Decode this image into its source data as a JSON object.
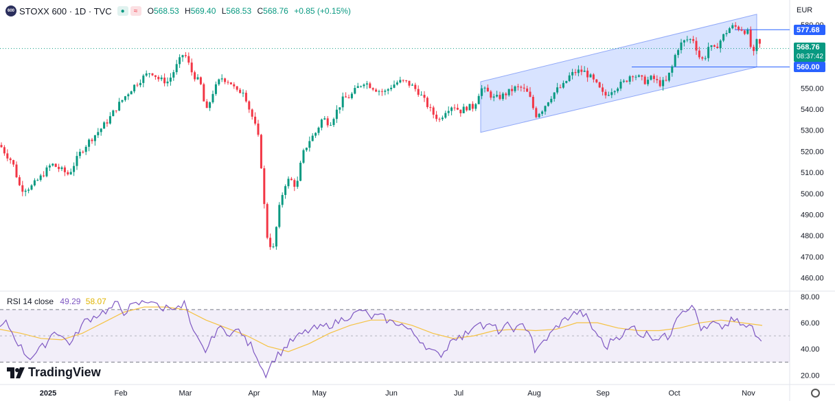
{
  "header": {
    "logo_text": "600",
    "symbol": "STOXX 600 · 1D · TVC",
    "ohlc": [
      {
        "k": "O",
        "v": "568.53"
      },
      {
        "k": "H",
        "v": "569.40"
      },
      {
        "k": "L",
        "v": "568.53"
      },
      {
        "k": "C",
        "v": "568.76"
      }
    ],
    "change": "+0.85 (+0.15%)",
    "pill_green_icon": "indicator-visibility-icon",
    "pill_red_icon": "compare-icon"
  },
  "currency": "EUR",
  "brand": "TradingView",
  "price_tags": {
    "upper_level": "577.68",
    "current_price": "568.76",
    "countdown": "08:37:42",
    "lower_level": "560.00"
  },
  "rsi": {
    "label": "RSI 14 close",
    "rsi_value": "49.29",
    "ma_value": "58.07"
  },
  "colors": {
    "up": "#089981",
    "down": "#f23645",
    "channel_fill": "#2962ff",
    "level_line": "#2962ff",
    "rsi_line": "#7e57c2",
    "rsi_ma": "#f5c242",
    "rsi_band": "#7e57c2"
  },
  "chart_data": {
    "type": "candlestick",
    "price_axis": {
      "ticks": [
        "580.00",
        "570.00",
        "560.00",
        "550.00",
        "540.00",
        "530.00",
        "520.00",
        "510.00",
        "500.00",
        "490.00",
        "480.00",
        "470.00",
        "460.00"
      ],
      "ylim": [
        455,
        582
      ]
    },
    "time_axis": [
      "2025",
      "Feb",
      "Mar",
      "Apr",
      "May",
      "Jun",
      "Jul",
      "Aug",
      "Sep",
      "Oct",
      "Nov"
    ],
    "close_path": [
      [
        0,
        523
      ],
      [
        8,
        519
      ],
      [
        18,
        515
      ],
      [
        30,
        502
      ],
      [
        45,
        503
      ],
      [
        60,
        508
      ],
      [
        75,
        514
      ],
      [
        90,
        511
      ],
      [
        100,
        509
      ],
      [
        108,
        514
      ],
      [
        118,
        520
      ],
      [
        130,
        525
      ],
      [
        145,
        530
      ],
      [
        158,
        535
      ],
      [
        170,
        541
      ],
      [
        182,
        546
      ],
      [
        195,
        551
      ],
      [
        208,
        555
      ],
      [
        220,
        558
      ],
      [
        232,
        554
      ],
      [
        245,
        553
      ],
      [
        258,
        561
      ],
      [
        268,
        567
      ],
      [
        280,
        557
      ],
      [
        292,
        552
      ],
      [
        300,
        538
      ],
      [
        310,
        548
      ],
      [
        322,
        555
      ],
      [
        335,
        553
      ],
      [
        345,
        548
      ],
      [
        355,
        549
      ],
      [
        362,
        541
      ],
      [
        370,
        534
      ],
      [
        378,
        524
      ],
      [
        384,
        497
      ],
      [
        390,
        477
      ],
      [
        398,
        474
      ],
      [
        406,
        492
      ],
      [
        414,
        504
      ],
      [
        422,
        507
      ],
      [
        432,
        503
      ],
      [
        440,
        518
      ],
      [
        450,
        525
      ],
      [
        460,
        529
      ],
      [
        470,
        536
      ],
      [
        480,
        533
      ],
      [
        490,
        539
      ],
      [
        500,
        545
      ],
      [
        510,
        546
      ],
      [
        520,
        550
      ],
      [
        530,
        553
      ],
      [
        540,
        551
      ],
      [
        550,
        549
      ],
      [
        560,
        548
      ],
      [
        570,
        551
      ],
      [
        580,
        553
      ],
      [
        590,
        553
      ],
      [
        600,
        551
      ],
      [
        610,
        548
      ],
      [
        620,
        543
      ],
      [
        630,
        538
      ],
      [
        640,
        535
      ],
      [
        650,
        540
      ],
      [
        660,
        542
      ],
      [
        670,
        539
      ],
      [
        680,
        541
      ],
      [
        690,
        541
      ],
      [
        700,
        550
      ],
      [
        710,
        548
      ],
      [
        720,
        545
      ],
      [
        730,
        546
      ],
      [
        740,
        548
      ],
      [
        750,
        550
      ],
      [
        760,
        550
      ],
      [
        770,
        547
      ],
      [
        780,
        537
      ],
      [
        790,
        540
      ],
      [
        800,
        545
      ],
      [
        810,
        549
      ],
      [
        820,
        551
      ],
      [
        830,
        556
      ],
      [
        840,
        558
      ],
      [
        850,
        558
      ],
      [
        860,
        555
      ],
      [
        870,
        551
      ],
      [
        880,
        546
      ],
      [
        890,
        549
      ],
      [
        900,
        551
      ],
      [
        910,
        553
      ],
      [
        920,
        557
      ],
      [
        930,
        555
      ],
      [
        940,
        553
      ],
      [
        950,
        555
      ],
      [
        960,
        552
      ],
      [
        970,
        553
      ],
      [
        980,
        561
      ],
      [
        985,
        568
      ],
      [
        992,
        571
      ],
      [
        1000,
        573
      ],
      [
        1010,
        573
      ],
      [
        1018,
        565
      ],
      [
        1025,
        563
      ],
      [
        1032,
        570
      ],
      [
        1040,
        568
      ],
      [
        1048,
        572
      ],
      [
        1056,
        576
      ],
      [
        1064,
        579
      ],
      [
        1072,
        579
      ],
      [
        1080,
        578
      ],
      [
        1090,
        576
      ],
      [
        1096,
        564
      ],
      [
        1102,
        572
      ],
      [
        1108,
        570
      ]
    ],
    "channel": {
      "lower_start": [
        700,
        529
      ],
      "lower_end": [
        1102,
        560
      ],
      "upper_start": [
        700,
        553
      ],
      "upper_end": [
        1102,
        585
      ]
    },
    "levels": [
      577.68,
      560.0,
      568.76
    ],
    "rsi_axis": {
      "ticks": [
        "80.00",
        "60.00",
        "40.00",
        "20.00"
      ],
      "ylim": [
        15,
        82
      ],
      "bands": [
        30,
        70
      ]
    },
    "rsi_path": [
      [
        0,
        56
      ],
      [
        10,
        60
      ],
      [
        20,
        50
      ],
      [
        32,
        40
      ],
      [
        42,
        33
      ],
      [
        55,
        38
      ],
      [
        68,
        45
      ],
      [
        80,
        55
      ],
      [
        92,
        48
      ],
      [
        104,
        44
      ],
      [
        115,
        55
      ],
      [
        125,
        62
      ],
      [
        135,
        64
      ],
      [
        148,
        68
      ],
      [
        160,
        70
      ],
      [
        170,
        75
      ],
      [
        180,
        68
      ],
      [
        190,
        72
      ],
      [
        200,
        74
      ],
      [
        212,
        76
      ],
      [
        222,
        78
      ],
      [
        232,
        70
      ],
      [
        242,
        72
      ],
      [
        252,
        73
      ],
      [
        262,
        70
      ],
      [
        270,
        76
      ],
      [
        278,
        55
      ],
      [
        290,
        45
      ],
      [
        298,
        38
      ],
      [
        306,
        44
      ],
      [
        316,
        56
      ],
      [
        326,
        54
      ],
      [
        338,
        52
      ],
      [
        350,
        55
      ],
      [
        358,
        45
      ],
      [
        368,
        42
      ],
      [
        378,
        30
      ],
      [
        386,
        20
      ],
      [
        392,
        26
      ],
      [
        400,
        33
      ],
      [
        410,
        38
      ],
      [
        420,
        44
      ],
      [
        430,
        48
      ],
      [
        442,
        52
      ],
      [
        454,
        55
      ],
      [
        466,
        56
      ],
      [
        478,
        58
      ],
      [
        490,
        60
      ],
      [
        502,
        64
      ],
      [
        515,
        66
      ],
      [
        528,
        70
      ],
      [
        538,
        64
      ],
      [
        548,
        65
      ],
      [
        558,
        64
      ],
      [
        570,
        60
      ],
      [
        582,
        60
      ],
      [
        594,
        55
      ],
      [
        606,
        50
      ],
      [
        618,
        44
      ],
      [
        628,
        38
      ],
      [
        640,
        35
      ],
      [
        650,
        40
      ],
      [
        660,
        50
      ],
      [
        672,
        48
      ],
      [
        685,
        55
      ],
      [
        695,
        62
      ],
      [
        705,
        56
      ],
      [
        716,
        58
      ],
      [
        728,
        53
      ],
      [
        740,
        58
      ],
      [
        752,
        55
      ],
      [
        762,
        58
      ],
      [
        772,
        54
      ],
      [
        780,
        36
      ],
      [
        790,
        45
      ],
      [
        800,
        50
      ],
      [
        812,
        58
      ],
      [
        822,
        62
      ],
      [
        832,
        66
      ],
      [
        842,
        68
      ],
      [
        852,
        66
      ],
      [
        862,
        56
      ],
      [
        872,
        50
      ],
      [
        882,
        40
      ],
      [
        892,
        48
      ],
      [
        902,
        50
      ],
      [
        914,
        54
      ],
      [
        924,
        57
      ],
      [
        934,
        50
      ],
      [
        944,
        52
      ],
      [
        954,
        48
      ],
      [
        964,
        50
      ],
      [
        974,
        48
      ],
      [
        984,
        65
      ],
      [
        994,
        70
      ],
      [
        1004,
        72
      ],
      [
        1012,
        70
      ],
      [
        1020,
        56
      ],
      [
        1028,
        54
      ],
      [
        1038,
        60
      ],
      [
        1048,
        56
      ],
      [
        1058,
        58
      ],
      [
        1066,
        62
      ],
      [
        1076,
        60
      ],
      [
        1086,
        56
      ],
      [
        1094,
        58
      ],
      [
        1100,
        50
      ],
      [
        1106,
        48
      ],
      [
        1112,
        49
      ]
    ],
    "rsi_ma_path": [
      [
        0,
        55
      ],
      [
        30,
        52
      ],
      [
        60,
        48
      ],
      [
        90,
        47
      ],
      [
        120,
        52
      ],
      [
        150,
        60
      ],
      [
        180,
        68
      ],
      [
        210,
        72
      ],
      [
        240,
        72
      ],
      [
        270,
        70
      ],
      [
        300,
        62
      ],
      [
        330,
        56
      ],
      [
        360,
        50
      ],
      [
        390,
        42
      ],
      [
        420,
        38
      ],
      [
        450,
        44
      ],
      [
        480,
        52
      ],
      [
        510,
        58
      ],
      [
        540,
        62
      ],
      [
        570,
        62
      ],
      [
        600,
        58
      ],
      [
        630,
        52
      ],
      [
        660,
        48
      ],
      [
        690,
        50
      ],
      [
        720,
        54
      ],
      [
        750,
        55
      ],
      [
        780,
        54
      ],
      [
        810,
        55
      ],
      [
        840,
        60
      ],
      [
        870,
        60
      ],
      [
        900,
        56
      ],
      [
        930,
        54
      ],
      [
        960,
        54
      ],
      [
        990,
        56
      ],
      [
        1020,
        60
      ],
      [
        1050,
        62
      ],
      [
        1080,
        60
      ],
      [
        1110,
        58
      ]
    ]
  }
}
